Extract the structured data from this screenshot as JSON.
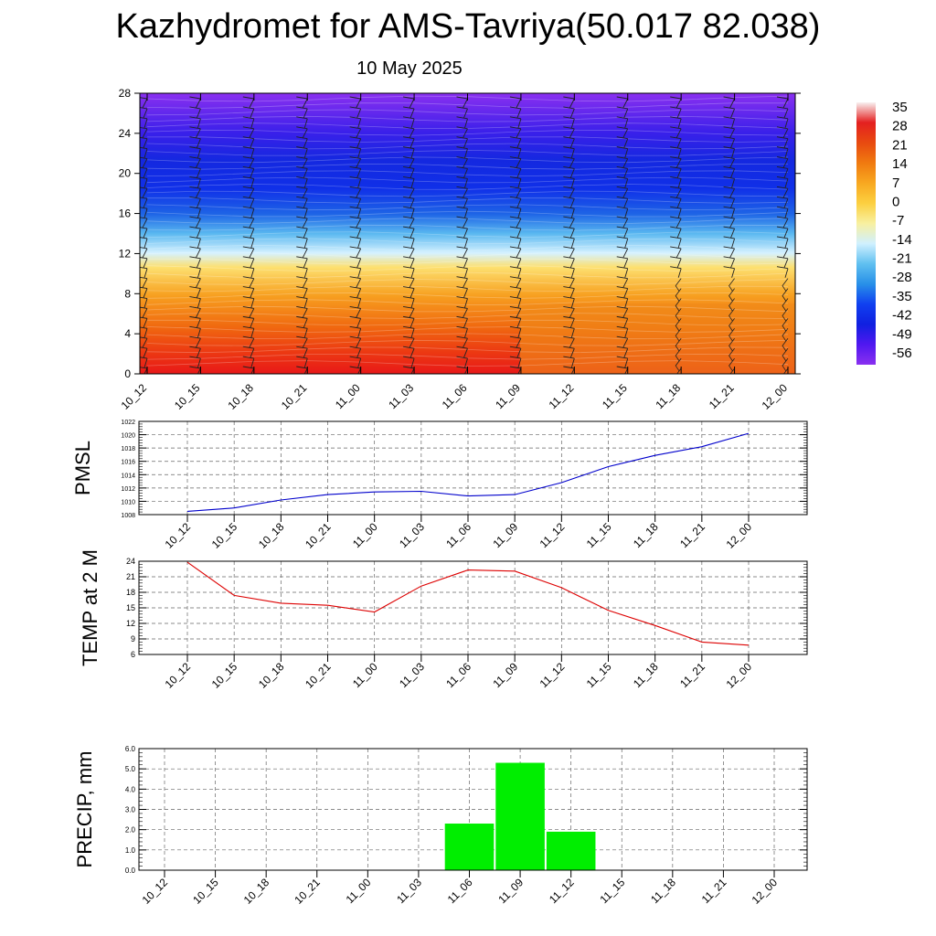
{
  "title": "Kazhydromet for AMS-Tavriya(50.017 82.038)",
  "subtitle": "10 May 2025",
  "chart_data": [
    {
      "type": "heatmap",
      "x_categories": [
        "10_12",
        "10_15",
        "10_18",
        "10_21",
        "11_00",
        "11_03",
        "11_06",
        "11_09",
        "11_12",
        "11_15",
        "11_18",
        "11_21",
        "12_00"
      ],
      "y_ticks": [
        0,
        4,
        8,
        12,
        16,
        20,
        24,
        28
      ],
      "ylim": [
        0,
        28
      ],
      "colorbar": {
        "labels": [
          "35",
          "28",
          "21",
          "14",
          "7",
          "0",
          "-7",
          "-14",
          "-21",
          "-28",
          "-35",
          "-42",
          "-49",
          "-56"
        ],
        "colors": [
          "#f8f0f0",
          "#e42020",
          "#e84a10",
          "#f07a10",
          "#f8a820",
          "#fcd040",
          "#f8f0a0",
          "#d0f0ff",
          "#60c0f0",
          "#2890e8",
          "#1040f0",
          "#1020e0",
          "#5018f0",
          "#8a30f0"
        ]
      },
      "levels": [
        0,
        4,
        8,
        12,
        16,
        20,
        24,
        28
      ],
      "temps": [
        [
          26,
          24,
          22,
          20,
          21,
          23,
          27,
          26,
          21,
          17,
          15,
          14,
          13
        ],
        [
          20,
          18,
          16,
          15,
          16,
          18,
          20,
          19,
          16,
          13,
          11,
          10,
          9
        ],
        [
          12,
          11,
          10,
          9,
          10,
          11,
          12,
          11,
          10,
          8,
          7,
          6,
          6
        ],
        [
          0,
          0,
          0,
          0,
          -1,
          0,
          0,
          -1,
          -1,
          -2,
          -2,
          -2,
          -3
        ],
        [
          -33,
          -33,
          -33,
          -34,
          -34,
          -33,
          -33,
          -34,
          -33,
          -33,
          -33,
          -33,
          -33
        ],
        [
          -51,
          -52,
          -54,
          -55,
          -56,
          -55,
          -55,
          -56,
          -55,
          -56,
          -56,
          -55,
          -54
        ],
        [
          -54,
          -53,
          -53,
          -53,
          -54,
          -53,
          -53,
          -53,
          -53,
          -54,
          -54,
          -53,
          -52
        ],
        [
          -58,
          -58,
          -58,
          -58,
          -58,
          -58,
          -58,
          -58,
          -58,
          -58,
          -58,
          -58,
          -58
        ]
      ]
    },
    {
      "type": "line",
      "ylabel": "PMSL",
      "categories": [
        "10_12",
        "10_15",
        "10_18",
        "10_21",
        "11_00",
        "11_03",
        "11_06",
        "11_09",
        "11_12",
        "11_15",
        "11_18",
        "11_21",
        "12_00"
      ],
      "values": [
        1008.5,
        1009.0,
        1010.2,
        1011.0,
        1011.4,
        1011.5,
        1010.8,
        1011.0,
        1012.8,
        1015.2,
        1016.9,
        1018.2,
        1020.2
      ],
      "yticks": [
        "1008",
        "1010",
        "1012",
        "1014",
        "1016",
        "1018",
        "1020",
        "1022"
      ],
      "ylim": [
        1008,
        1022
      ],
      "color": "#0000cc",
      "grid": true
    },
    {
      "type": "line",
      "ylabel": "TEMP at 2 M",
      "categories": [
        "10_12",
        "10_15",
        "10_18",
        "10_21",
        "11_00",
        "11_03",
        "11_06",
        "11_09",
        "11_12",
        "11_15",
        "11_18",
        "11_21",
        "12_00"
      ],
      "values": [
        23.8,
        17.4,
        15.9,
        15.5,
        14.2,
        19.2,
        22.3,
        22.1,
        18.9,
        14.5,
        11.6,
        8.4,
        7.8
      ],
      "yticks": [
        "6",
        "9",
        "12",
        "15",
        "18",
        "21",
        "24"
      ],
      "ylim": [
        6,
        24
      ],
      "color": "#dd0000",
      "grid": true
    },
    {
      "type": "bar",
      "ylabel": "PRECIP, mm",
      "categories": [
        "10_12",
        "10_15",
        "10_18",
        "10_21",
        "11_00",
        "11_03",
        "11_06",
        "11_09",
        "11_12",
        "11_15",
        "11_18",
        "11_21",
        "12_00"
      ],
      "values": [
        0,
        0,
        0,
        0,
        0,
        0,
        2.3,
        5.3,
        1.9,
        0,
        0,
        0,
        0
      ],
      "yticks": [
        "0.0",
        "1.0",
        "2.0",
        "3.0",
        "4.0",
        "5.0",
        "6.0"
      ],
      "ylim": [
        0,
        6
      ],
      "color": "#00ee00",
      "grid": true
    }
  ]
}
